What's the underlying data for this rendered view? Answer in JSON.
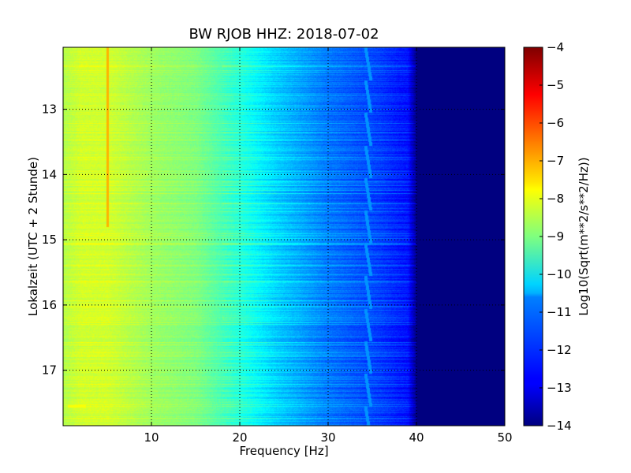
{
  "chart_data": {
    "type": "heatmap",
    "title": "BW RJOB HHZ: 2018-07-02",
    "xlabel": "Frequency [Hz]",
    "ylabel": "Lokalzeit (UTC + 2 Stunde)",
    "xlim": [
      0,
      50
    ],
    "ylim": [
      17.85,
      12.05
    ],
    "y_axis_inverted": true,
    "x_ticks": [
      10,
      20,
      30,
      40,
      50
    ],
    "x_tick_labels": [
      "10",
      "20",
      "30",
      "40",
      "50"
    ],
    "y_ticks": [
      13,
      14,
      15,
      16,
      17
    ],
    "y_tick_labels": [
      "13",
      "14",
      "15",
      "16",
      "17"
    ],
    "grid": true,
    "colormap": "jet",
    "colorbar": {
      "label": "Log10(Sqrt(m**2/s**2/Hz))",
      "range": [
        -14,
        -4
      ],
      "ticks": [
        -4,
        -5,
        -6,
        -7,
        -8,
        -9,
        -10,
        -11,
        -12,
        -13,
        -14
      ],
      "tick_labels": [
        "−4",
        "−5",
        "−6",
        "−7",
        "−8",
        "−9",
        "−10",
        "−11",
        "−12",
        "−13",
        "−14"
      ]
    },
    "spectrum_profile": {
      "frequency_hz": [
        0,
        2,
        5,
        10,
        15,
        20,
        22,
        24,
        26,
        28,
        30,
        32,
        34,
        36,
        38,
        39,
        40,
        41,
        42,
        50
      ],
      "log10_psd": [
        -8.5,
        -8.2,
        -8.2,
        -8.7,
        -9.0,
        -9.9,
        -10.3,
        -10.7,
        -11.0,
        -11.3,
        -11.6,
        -11.8,
        -12.0,
        -12.2,
        -12.5,
        -12.6,
        -14,
        -14,
        -14,
        -14
      ]
    },
    "features": [
      {
        "type": "spectral_line",
        "frequency_hz": 5.0,
        "time_from": 12.05,
        "time_to": 14.8,
        "log10_psd": -7.0
      },
      {
        "type": "drifting_line",
        "frequency_hz": [
          34.2,
          34.8
        ],
        "time_from": 12.05,
        "time_to": 17.85,
        "log10_psd": -11.3
      },
      {
        "type": "burst",
        "frequency_hz": [
          0.5,
          2.5
        ],
        "time": 17.55,
        "log10_psd": -7.8
      }
    ]
  }
}
